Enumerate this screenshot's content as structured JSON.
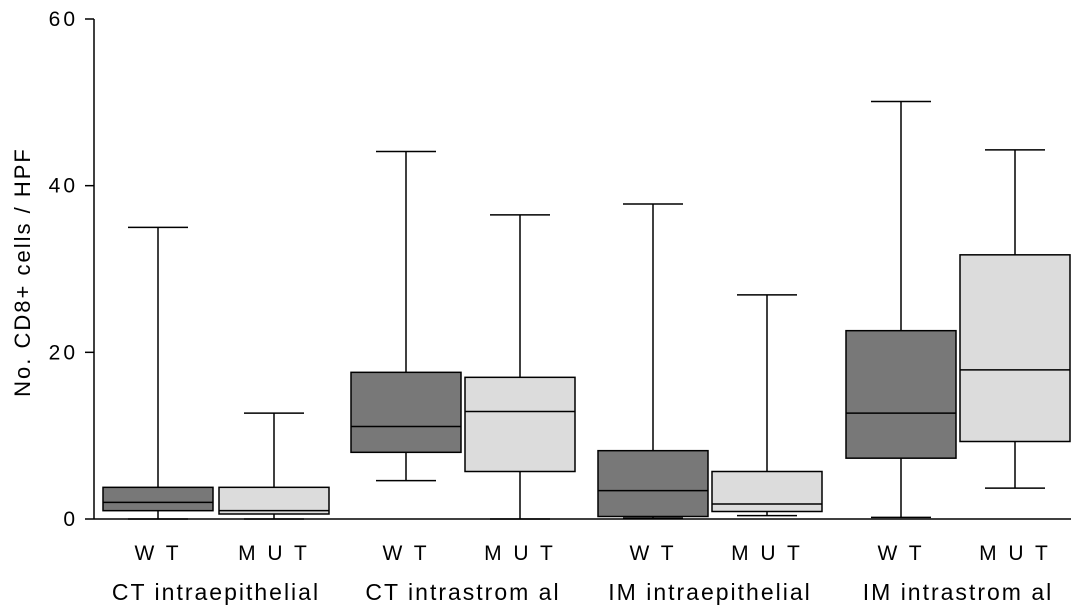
{
  "chart_data": {
    "type": "box",
    "title": "",
    "xlabel": "",
    "ylabel": "No. CD8+ cells / HPF",
    "ylim": [
      0,
      60
    ],
    "yticks": [
      "0",
      "20",
      "40",
      "60"
    ],
    "group_labels": [
      "CT intraepithelial",
      "CT intrastrom al",
      "IM intraepithelial",
      "IM intrastrom al"
    ],
    "colors": {
      "WT": "#787878",
      "MUT": "#dcdcdc"
    },
    "boxes": [
      {
        "group": "CT intraepithelial",
        "label": "W T",
        "series": "WT",
        "min": 0,
        "q1": 1.0,
        "median": 2.0,
        "q3": 3.8,
        "max": 35.0
      },
      {
        "group": "CT intraepithelial",
        "label": "M U T",
        "series": "MUT",
        "min": 0,
        "q1": 0.6,
        "median": 1.0,
        "q3": 3.8,
        "max": 12.7
      },
      {
        "group": "CT intrastrom al",
        "label": "W T",
        "series": "WT",
        "min": 4.6,
        "q1": 8.0,
        "median": 11.1,
        "q3": 17.6,
        "max": 44.1
      },
      {
        "group": "CT intrastrom al",
        "label": "M U T",
        "series": "MUT",
        "min": 0,
        "q1": 5.7,
        "median": 12.9,
        "q3": 17.0,
        "max": 36.5
      },
      {
        "group": "IM intraepithelial",
        "label": "W T",
        "series": "WT",
        "min": 0.1,
        "q1": 0.3,
        "median": 3.4,
        "q3": 8.2,
        "max": 37.8
      },
      {
        "group": "IM intraepithelial",
        "label": "M U T",
        "series": "MUT",
        "min": 0.4,
        "q1": 0.9,
        "median": 1.8,
        "q3": 5.7,
        "max": 26.9
      },
      {
        "group": "IM intrastrom al",
        "label": "W T",
        "series": "WT",
        "min": 0.2,
        "q1": 7.3,
        "median": 12.7,
        "q3": 22.6,
        "max": 50.1
      },
      {
        "group": "IM intrastrom al",
        "label": "M U T",
        "series": "MUT",
        "min": 3.7,
        "q1": 9.3,
        "median": 17.9,
        "q3": 31.7,
        "max": 44.3
      }
    ]
  }
}
